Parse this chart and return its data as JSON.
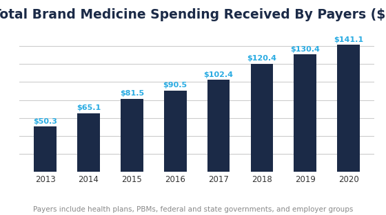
{
  "title": "Total Brand Medicine Spending Received By Payers ($B)",
  "subtitle": "Payers include health plans, PBMs, federal and state governments, and employer groups",
  "categories": [
    "2013",
    "2014",
    "2015",
    "2016",
    "2017",
    "2018",
    "2019",
    "2020"
  ],
  "values": [
    50.3,
    65.1,
    81.5,
    90.5,
    102.4,
    120.4,
    130.4,
    141.1
  ],
  "labels": [
    "$50.3",
    "$65.1",
    "$81.5",
    "$90.5",
    "$102.4",
    "$120.4",
    "$130.4",
    "$141.1"
  ],
  "bar_color": "#1b2a47",
  "label_color": "#29abe2",
  "title_color": "#1b2a47",
  "subtitle_color": "#888888",
  "background_color": "#ffffff",
  "grid_color": "#cccccc",
  "ylim": [
    0,
    160
  ],
  "title_fontsize": 13.5,
  "label_fontsize": 8.0,
  "subtitle_fontsize": 7.5,
  "tick_fontsize": 8.5,
  "bar_width": 0.52
}
